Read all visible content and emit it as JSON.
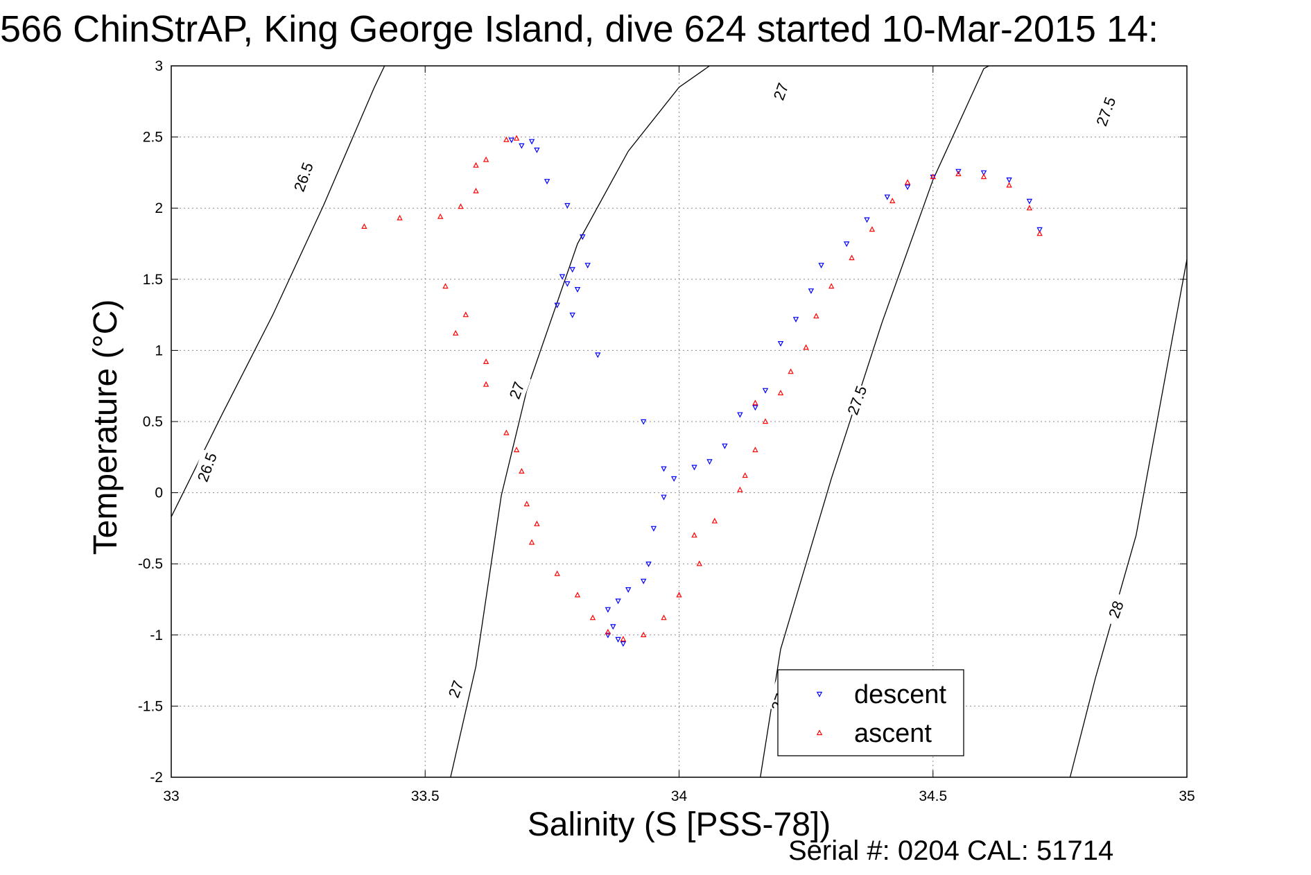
{
  "chart_data": {
    "type": "scatter",
    "title": "566 ChinStrAP, King George Island, dive 624 started 10-Mar-2015 14:",
    "xlabel": "Salinity (S [PSS-78])",
    "ylabel": "Temperature (°C)",
    "xlim": [
      33,
      35
    ],
    "ylim": [
      -2,
      3
    ],
    "xticks": [
      33,
      33.5,
      34,
      34.5,
      35
    ],
    "xtick_labels": [
      "33",
      "33.5",
      "34",
      "34.5",
      "35"
    ],
    "yticks": [
      -2,
      -1.5,
      -1,
      -0.5,
      0,
      0.5,
      1,
      1.5,
      2,
      2.5,
      3
    ],
    "ytick_labels": [
      "-2",
      "-1.5",
      "-1",
      "-0.5",
      "0",
      "0.5",
      "1",
      "1.5",
      "2",
      "2.5",
      "3"
    ],
    "grid": true,
    "legend_position": "lower-right",
    "footer": "Serial #: 0204  CAL: 51714",
    "contours": [
      {
        "value": "26.5",
        "points": [
          [
            33.0,
            -0.17
          ],
          [
            33.1,
            0.55
          ],
          [
            33.2,
            1.25
          ],
          [
            33.3,
            2.02
          ],
          [
            33.4,
            2.85
          ],
          [
            33.42,
            3.0
          ]
        ],
        "labels": [
          [
            33.26,
            2.22
          ],
          [
            33.07,
            0.18
          ]
        ]
      },
      {
        "value": "27",
        "points": [
          [
            33.55,
            -2.0
          ],
          [
            33.6,
            -1.22
          ],
          [
            33.65,
            -0.02
          ],
          [
            33.7,
            0.72
          ],
          [
            33.8,
            1.75
          ],
          [
            33.9,
            2.4
          ],
          [
            34.0,
            2.85
          ],
          [
            34.06,
            3.0
          ]
        ],
        "labels": [
          [
            34.2,
            2.82
          ],
          [
            33.68,
            0.72
          ],
          [
            33.56,
            -1.38
          ]
        ]
      },
      {
        "value": "27.5",
        "points": [
          [
            34.16,
            -2.0
          ],
          [
            34.2,
            -1.1
          ],
          [
            34.3,
            0.1
          ],
          [
            34.4,
            1.2
          ],
          [
            34.5,
            2.2
          ],
          [
            34.6,
            2.98
          ],
          [
            34.61,
            3.0
          ]
        ],
        "labels": [
          [
            34.84,
            2.68
          ],
          [
            34.35,
            0.65
          ],
          [
            34.2,
            -1.43
          ]
        ]
      },
      {
        "value": "28",
        "points": [
          [
            34.77,
            -2.0
          ],
          [
            34.82,
            -1.3
          ],
          [
            34.9,
            -0.3
          ],
          [
            35.0,
            1.64
          ]
        ],
        "labels": [
          [
            35.31,
            1.28
          ],
          [
            34.86,
            -0.82
          ]
        ]
      }
    ],
    "series": [
      {
        "name": "descent",
        "color": "#0000ff",
        "marker": "triangle-down",
        "values": [
          [
            33.67,
            2.48
          ],
          [
            33.69,
            2.44
          ],
          [
            33.71,
            2.47
          ],
          [
            33.72,
            2.41
          ],
          [
            33.74,
            2.19
          ],
          [
            33.78,
            2.02
          ],
          [
            33.81,
            1.8
          ],
          [
            33.77,
            1.52
          ],
          [
            33.78,
            1.47
          ],
          [
            33.79,
            1.57
          ],
          [
            33.8,
            1.43
          ],
          [
            33.82,
            1.6
          ],
          [
            33.76,
            1.32
          ],
          [
            33.79,
            1.25
          ],
          [
            33.84,
            0.97
          ],
          [
            33.93,
            0.5
          ],
          [
            33.97,
            0.17
          ],
          [
            33.99,
            0.1
          ],
          [
            34.03,
            0.18
          ],
          [
            34.06,
            0.22
          ],
          [
            34.09,
            0.33
          ],
          [
            34.12,
            0.55
          ],
          [
            34.15,
            0.6
          ],
          [
            34.17,
            0.72
          ],
          [
            34.2,
            1.05
          ],
          [
            34.23,
            1.22
          ],
          [
            34.26,
            1.42
          ],
          [
            34.28,
            1.6
          ],
          [
            34.33,
            1.75
          ],
          [
            34.37,
            1.92
          ],
          [
            34.41,
            2.08
          ],
          [
            34.45,
            2.15
          ],
          [
            34.5,
            2.22
          ],
          [
            34.55,
            2.26
          ],
          [
            34.6,
            2.25
          ],
          [
            34.65,
            2.2
          ],
          [
            34.69,
            2.05
          ],
          [
            34.71,
            1.85
          ],
          [
            33.97,
            -0.03
          ],
          [
            33.95,
            -0.25
          ],
          [
            33.94,
            -0.5
          ],
          [
            33.93,
            -0.62
          ],
          [
            33.9,
            -0.68
          ],
          [
            33.88,
            -0.76
          ],
          [
            33.86,
            -0.82
          ],
          [
            33.87,
            -0.94
          ],
          [
            33.86,
            -1.0
          ],
          [
            33.88,
            -1.03
          ],
          [
            33.89,
            -1.06
          ]
        ]
      },
      {
        "name": "ascent",
        "color": "#ff0000",
        "marker": "triangle-up",
        "values": [
          [
            33.66,
            2.48
          ],
          [
            33.68,
            2.49
          ],
          [
            33.62,
            2.34
          ],
          [
            33.6,
            2.3
          ],
          [
            33.6,
            2.12
          ],
          [
            33.57,
            2.01
          ],
          [
            33.53,
            1.94
          ],
          [
            33.45,
            1.93
          ],
          [
            33.38,
            1.87
          ],
          [
            33.54,
            1.45
          ],
          [
            33.58,
            1.25
          ],
          [
            33.56,
            1.12
          ],
          [
            33.62,
            0.92
          ],
          [
            33.62,
            0.76
          ],
          [
            33.66,
            0.42
          ],
          [
            33.68,
            0.3
          ],
          [
            33.69,
            0.15
          ],
          [
            33.7,
            -0.08
          ],
          [
            33.72,
            -0.22
          ],
          [
            33.71,
            -0.35
          ],
          [
            33.76,
            -0.57
          ],
          [
            33.8,
            -0.72
          ],
          [
            33.83,
            -0.88
          ],
          [
            33.86,
            -0.98
          ],
          [
            33.89,
            -1.03
          ],
          [
            33.93,
            -1.0
          ],
          [
            33.97,
            -0.88
          ],
          [
            34.0,
            -0.72
          ],
          [
            34.04,
            -0.5
          ],
          [
            34.03,
            -0.3
          ],
          [
            34.07,
            -0.2
          ],
          [
            34.12,
            0.02
          ],
          [
            34.13,
            0.12
          ],
          [
            34.15,
            0.3
          ],
          [
            34.17,
            0.5
          ],
          [
            34.15,
            0.63
          ],
          [
            34.2,
            0.7
          ],
          [
            34.22,
            0.85
          ],
          [
            34.25,
            1.02
          ],
          [
            34.27,
            1.24
          ],
          [
            34.3,
            1.45
          ],
          [
            34.34,
            1.65
          ],
          [
            34.38,
            1.85
          ],
          [
            34.42,
            2.05
          ],
          [
            34.45,
            2.18
          ],
          [
            34.5,
            2.22
          ],
          [
            34.55,
            2.24
          ],
          [
            34.6,
            2.22
          ],
          [
            34.65,
            2.16
          ],
          [
            34.69,
            2.0
          ],
          [
            34.71,
            1.82
          ]
        ]
      }
    ]
  }
}
